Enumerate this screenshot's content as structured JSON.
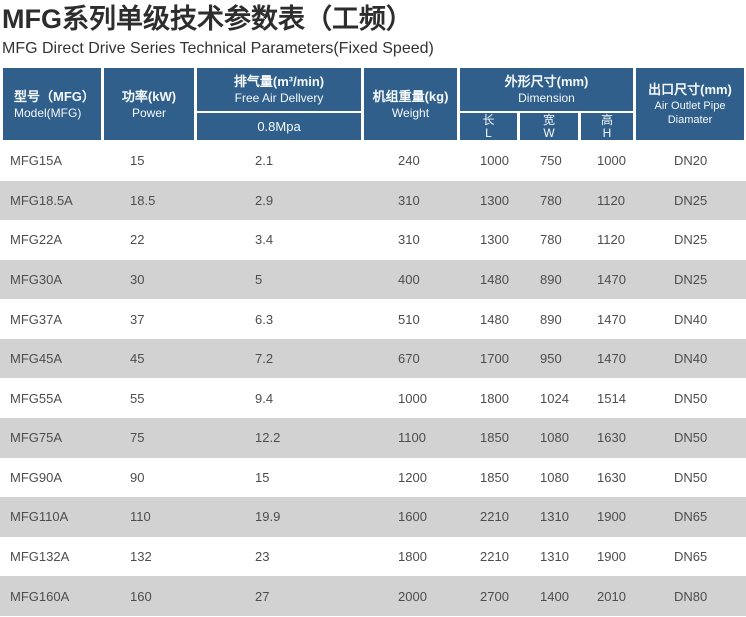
{
  "page": {
    "title": "MFG系列单级技术参数表（工频）",
    "subtitle": "MFG Direct Drive Series Technical Parameters(Fixed Speed)"
  },
  "colors": {
    "header_bg": "#2f5f8a",
    "header_text": "#f5f9fc",
    "row_alt_bg": "#d2d2d2",
    "body_text": "#4d4d4d",
    "title_text": "#2d2d2d"
  },
  "table": {
    "header": {
      "model_zh": "型号（MFG）",
      "model_en": "Model(MFG)",
      "power_zh": "功率(kW)",
      "power_en": "Power",
      "fad_zh": "排气量(m³/min)",
      "fad_en": "Free Air Dellvery",
      "fad_pressure": "0.8Mpa",
      "weight_zh": "机组重量(kg)",
      "weight_en": "Weight",
      "dimension_zh": "外形尺寸(mm)",
      "dimension_en": "Dimension",
      "dim_length_zh": "长",
      "dim_length_en": "L",
      "dim_width_zh": "宽",
      "dim_width_en": "W",
      "dim_height_zh": "高",
      "dim_height_en": "H",
      "outlet_zh": "出口尺寸(mm)",
      "outlet_en": "Air Outlet Pipe Diamater"
    },
    "rows": [
      {
        "model": "MFG15A",
        "power": "15",
        "fad": "2.1",
        "weight": "240",
        "l": "1000",
        "w": "750",
        "h": "1000",
        "outlet": "DN20"
      },
      {
        "model": "MFG18.5A",
        "power": "18.5",
        "fad": "2.9",
        "weight": "310",
        "l": "1300",
        "w": "780",
        "h": "1120",
        "outlet": "DN25"
      },
      {
        "model": "MFG22A",
        "power": "22",
        "fad": "3.4",
        "weight": "310",
        "l": "1300",
        "w": "780",
        "h": "1120",
        "outlet": "DN25"
      },
      {
        "model": "MFG30A",
        "power": "30",
        "fad": "5",
        "weight": "400",
        "l": "1480",
        "w": "890",
        "h": "1470",
        "outlet": "DN25"
      },
      {
        "model": "MFG37A",
        "power": "37",
        "fad": "6.3",
        "weight": "510",
        "l": "1480",
        "w": "890",
        "h": "1470",
        "outlet": "DN40"
      },
      {
        "model": "MFG45A",
        "power": "45",
        "fad": "7.2",
        "weight": "670",
        "l": "1700",
        "w": "950",
        "h": "1470",
        "outlet": "DN40"
      },
      {
        "model": "MFG55A",
        "power": "55",
        "fad": "9.4",
        "weight": "1000",
        "l": "1800",
        "w": "1024",
        "h": "1514",
        "outlet": "DN50"
      },
      {
        "model": "MFG75A",
        "power": "75",
        "fad": "12.2",
        "weight": "1100",
        "l": "1850",
        "w": "1080",
        "h": "1630",
        "outlet": "DN50"
      },
      {
        "model": "MFG90A",
        "power": "90",
        "fad": "15",
        "weight": "1200",
        "l": "1850",
        "w": "1080",
        "h": "1630",
        "outlet": "DN50"
      },
      {
        "model": "MFG110A",
        "power": "110",
        "fad": "19.9",
        "weight": "1600",
        "l": "2210",
        "w": "1310",
        "h": "1900",
        "outlet": "DN65"
      },
      {
        "model": "MFG132A",
        "power": "132",
        "fad": "23",
        "weight": "1800",
        "l": "2210",
        "w": "1310",
        "h": "1900",
        "outlet": "DN65"
      },
      {
        "model": "MFG160A",
        "power": "160",
        "fad": "27",
        "weight": "2000",
        "l": "2700",
        "w": "1400",
        "h": "2010",
        "outlet": "DN80"
      }
    ]
  }
}
